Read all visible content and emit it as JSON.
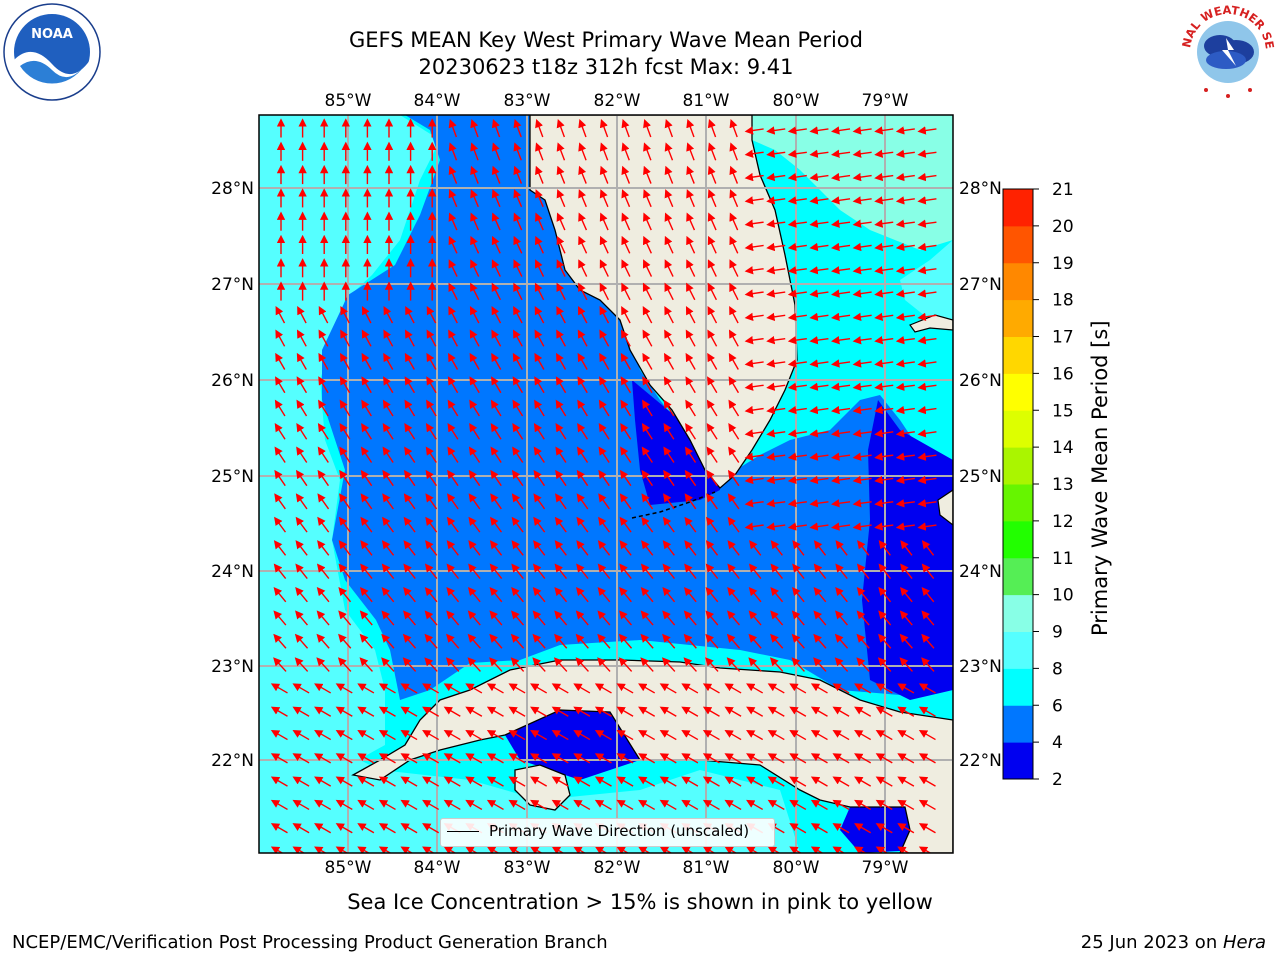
{
  "title": {
    "line1": "GEFS MEAN Key West Primary Wave Mean Period",
    "line2": "20230623 t18z 312h fcst   Max: 9.41"
  },
  "logos": {
    "left": "NOAA",
    "right": "NATIONAL WEATHER SERVICE"
  },
  "map": {
    "longitude_labels": [
      "85°W",
      "84°W",
      "83°W",
      "82°W",
      "81°W",
      "80°W",
      "79°W"
    ],
    "latitude_labels": [
      "28°N",
      "27°N",
      "26°N",
      "25°N",
      "24°N",
      "23°N",
      "22°N"
    ],
    "legend_label": "Primary Wave Direction (unscaled)"
  },
  "colorbar": {
    "label": "Primary Wave Mean Period [s]",
    "ticks": [
      "2",
      "4",
      "6",
      "8",
      "9",
      "10",
      "11",
      "12",
      "13",
      "14",
      "15",
      "16",
      "17",
      "18",
      "19",
      "20",
      "21"
    ],
    "colors": [
      "#0000f0",
      "#0077ff",
      "#00ffff",
      "#55ffff",
      "#88ffe6",
      "#55ee55",
      "#22ff00",
      "#66f500",
      "#aaf500",
      "#ddff00",
      "#ffff00",
      "#ffd700",
      "#ffaa00",
      "#ff8800",
      "#ff5500",
      "#ff2200",
      "#ff0000"
    ]
  },
  "chart_data": {
    "type": "heatmap",
    "title": "GEFS MEAN Key West Primary Wave Mean Period",
    "forecast": "20230623 t18z 312h fcst",
    "max_value": 9.41,
    "units": "s",
    "lon_range": [
      -86,
      -78.3
    ],
    "lat_range": [
      21,
      28.8
    ],
    "contour_levels": [
      2,
      4,
      6,
      8,
      9,
      10,
      11,
      12,
      13,
      14,
      15,
      16,
      17,
      18,
      19,
      20,
      21
    ]
  },
  "footer": {
    "note": "Sea Ice Concentration > 15% is shown in pink to yellow",
    "left": "NCEP/EMC/Verification Post Processing Product Generation Branch",
    "date": "25 Jun 2023 on ",
    "host": "Hera"
  }
}
